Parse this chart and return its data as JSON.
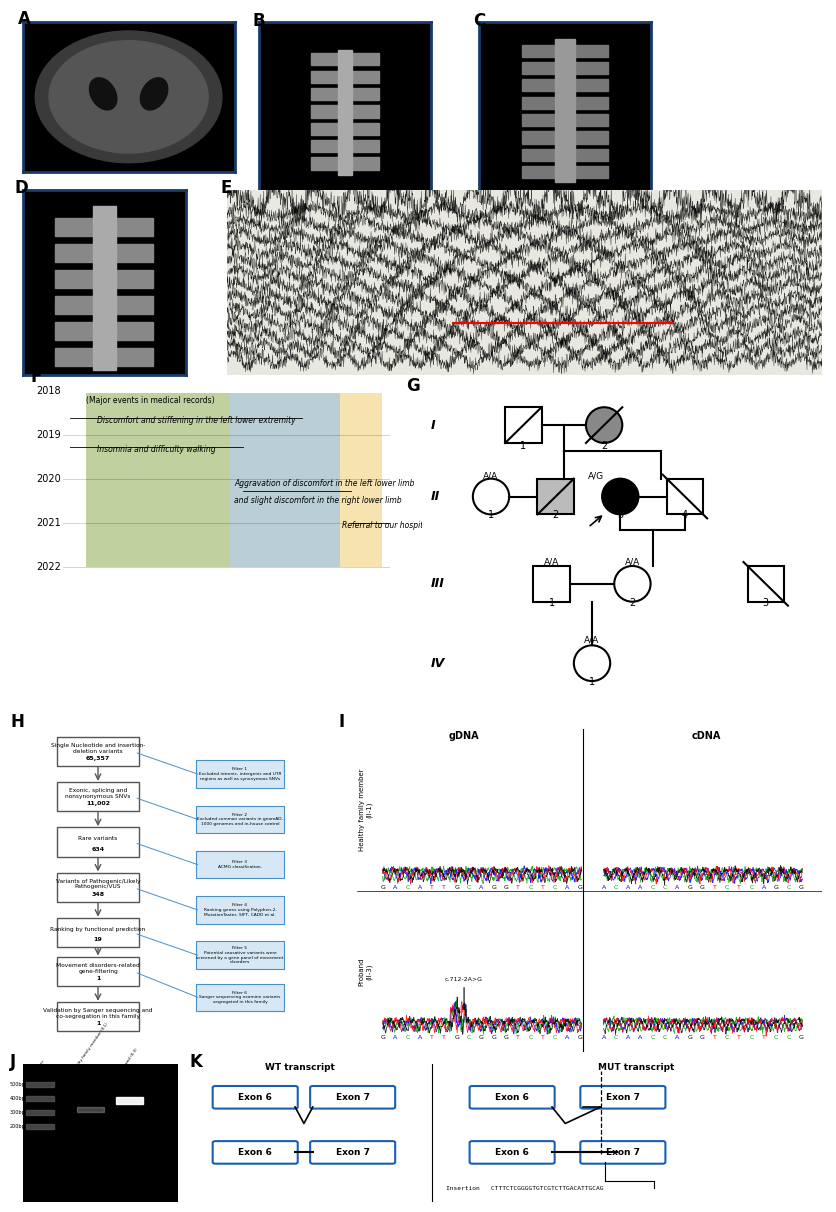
{
  "fig_width": 8.16,
  "fig_height": 11.98,
  "bg_color": "#ffffff",
  "green_color": "#b5c98e",
  "blue_color": "#aec6cf",
  "yellow_color": "#f5dea3",
  "insertion_color": "#f5c842",
  "exon_edge_color": "#1a5fb4",
  "filter_bg": "#d6e8f5",
  "filter_edge": "#4a90c4",
  "panel_labels": [
    "A",
    "B",
    "C",
    "D",
    "E",
    "F",
    "G",
    "H",
    "I",
    "J",
    "K"
  ],
  "flowchart_boxes": [
    "Single Nucleotide and insertion-\ndeletion variants\n65,357",
    "Exonic, splicing and\nnonsynonymous SNVs\n11,002",
    "Rare variants\n634",
    "Variants of Pathogenic/Likely\nPathogenic/VUS\n348",
    "Ranking by functional prediction\n19",
    "Movement disorders-related\ngene-filtering\n1",
    "Validation by Sanger sequencing and\nco-segregation in this family\n1"
  ],
  "filter_boxes": [
    "Filter 1\nExcluded intronic, intergenic and UTR\nregions as well as synonymous SNVs",
    "Filter 2\nExcluded common variants in gnomAD,\n1000 genomes and in-house control",
    "Filter 3\nACMG classification.",
    "Filter 4\nRanking genes using Polyphen-2,\nMutationTaster, SIFT, CADD et al.",
    "Filter 5\nPotential causative variants were\nscreened by a gene panel of movement\ndisorders",
    "Filter 6\nSanger sequencing examine variants\nsegregated in this family"
  ],
  "gdna_healthy": [
    "G",
    "A",
    "C",
    "A",
    "T",
    "T",
    "G",
    "C",
    "A",
    "G",
    "G",
    "T",
    "C",
    "T",
    "C",
    "A",
    "G"
  ],
  "cdna_healthy": [
    "A",
    "C",
    "A",
    "A",
    "C",
    "C",
    "A",
    "G",
    "G",
    "T",
    "C",
    "T",
    "C",
    "A",
    "G",
    "C",
    "G"
  ],
  "gdna_proband": [
    "G",
    "A",
    "C",
    "A",
    "T",
    "T",
    "G",
    "C",
    "G",
    "G",
    "G",
    "T",
    "C",
    "T",
    "C",
    "A",
    "G"
  ],
  "cdna_proband": [
    "A",
    "C",
    "A",
    "A",
    "C",
    "C",
    "A",
    "G",
    "G",
    "T",
    "C",
    "T",
    "C",
    "T",
    "C",
    "C",
    "G"
  ],
  "insertion_seq": "CTTTCTCGGGGTGTCGTCTTGACATTGCAG",
  "ladder_labels": [
    "500bp",
    "400bp",
    "300bp",
    "200bp"
  ]
}
